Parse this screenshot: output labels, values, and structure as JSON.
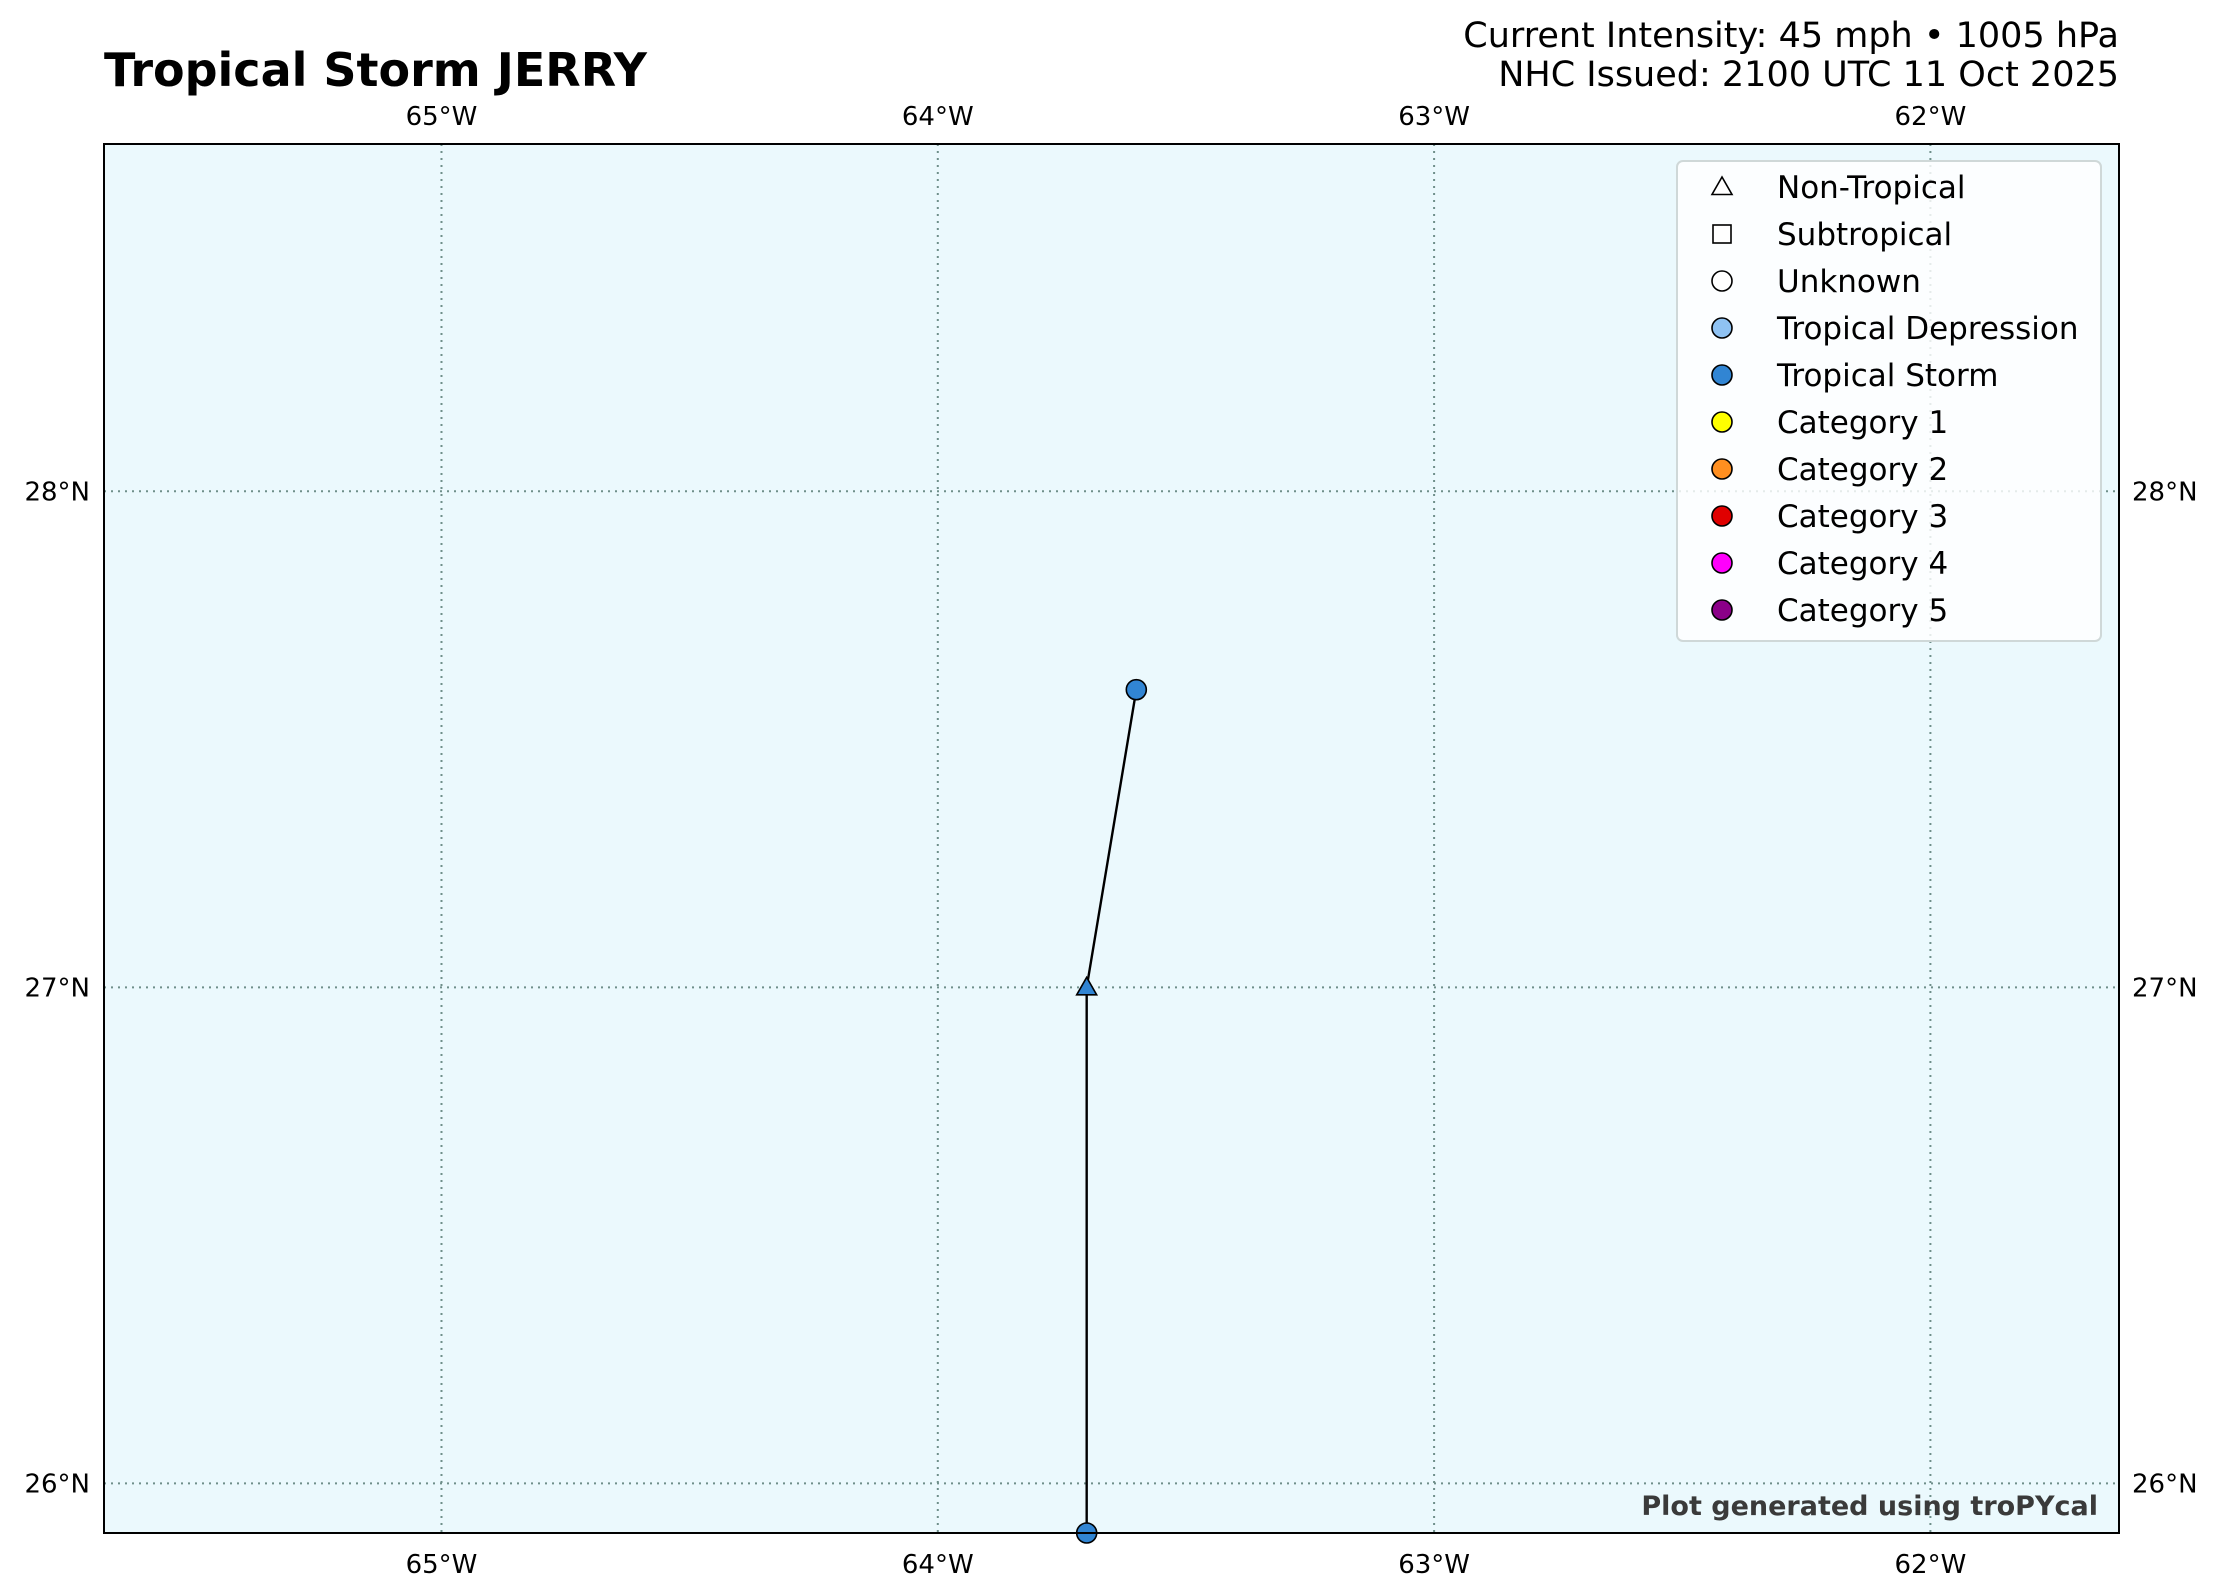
{
  "title": "Tropical Storm JERRY",
  "intensity_label": "Current Intensity: 45 mph • 1005 hPa",
  "issued_label": "NHC Issued: 2100 UTC 11 Oct 2025",
  "credit": "Plot generated using troPYcal",
  "map": {
    "lon_range": [
      -65.68,
      -61.62
    ],
    "lat_range": [
      25.9,
      28.7
    ],
    "ocean_color": "#ebf9fd",
    "grid": "dotted",
    "lon_ticks": [
      {
        "value": -65,
        "label": "65°W"
      },
      {
        "value": -64,
        "label": "64°W"
      },
      {
        "value": -63,
        "label": "63°W"
      },
      {
        "value": -62,
        "label": "62°W"
      }
    ],
    "lat_ticks": [
      {
        "value": 26,
        "label": "26°N"
      },
      {
        "value": 27,
        "label": "27°N"
      },
      {
        "value": 28,
        "label": "28°N"
      }
    ]
  },
  "track": [
    {
      "lon": -63.7,
      "lat": 25.9,
      "marker": "circle",
      "category": "Tropical Storm"
    },
    {
      "lon": -63.7,
      "lat": 27.0,
      "marker": "triangle",
      "category": "Tropical Storm"
    },
    {
      "lon": -63.6,
      "lat": 27.6,
      "marker": "circle",
      "category": "Tropical Storm"
    }
  ],
  "legend": {
    "placement": "top-right",
    "items": [
      {
        "label": "Non-Tropical",
        "marker": "triangle",
        "color": "#ffffff"
      },
      {
        "label": "Subtropical",
        "marker": "square",
        "color": "#ffffff"
      },
      {
        "label": "Unknown",
        "marker": "circle",
        "color": "#ffffff"
      },
      {
        "label": "Tropical Depression",
        "marker": "circle",
        "color": "#8fc2f2"
      },
      {
        "label": "Tropical Storm",
        "marker": "circle",
        "color": "#3185d3"
      },
      {
        "label": "Category 1",
        "marker": "circle",
        "color": "#ffff00"
      },
      {
        "label": "Category 2",
        "marker": "circle",
        "color": "#ff8f20"
      },
      {
        "label": "Category 3",
        "marker": "circle",
        "color": "#e00000"
      },
      {
        "label": "Category 4",
        "marker": "circle",
        "color": "#ff00fc"
      },
      {
        "label": "Category 5",
        "marker": "circle",
        "color": "#8b0088"
      }
    ]
  },
  "category_colors": {
    "Tropical Storm": "#3185d3"
  }
}
